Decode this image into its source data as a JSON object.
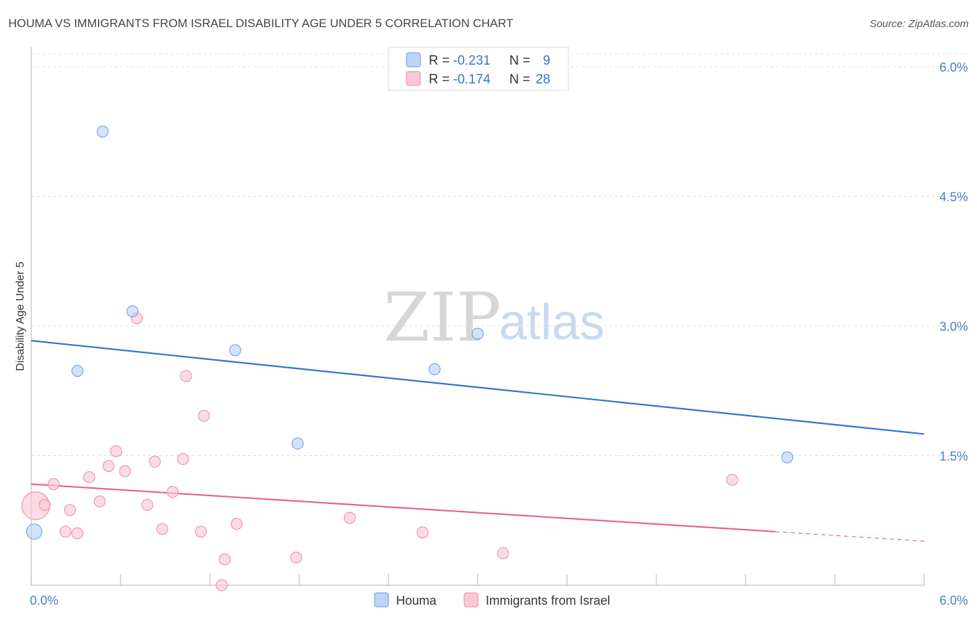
{
  "title": "HOUMA VS IMMIGRANTS FROM ISRAEL DISABILITY AGE UNDER 5 CORRELATION CHART",
  "source": "Source: ZipAtlas.com",
  "watermark": {
    "zip": "ZIP",
    "atlas": "atlas"
  },
  "colors": {
    "houma_fill": "#bcd4f6",
    "houma_stroke": "#7aa6e3",
    "houma_line": "#2f74d0",
    "israel_fill": "#f9c8d6",
    "israel_stroke": "#ee97b0",
    "israel_line": "#e6658f",
    "tick_text": "#4a7fd0",
    "grid": "#dddddd"
  },
  "legend": {
    "r_label": "R =",
    "n_label": "N =",
    "rows": [
      {
        "r": "-0.231",
        "n": "9"
      },
      {
        "r": "-0.174",
        "n": "28"
      }
    ]
  },
  "chart_data": {
    "type": "scatter",
    "title": "HOUMA VS IMMIGRANTS FROM ISRAEL DISABILITY AGE UNDER 5 CORRELATION CHART",
    "xlabel": "",
    "ylabel": "Disability Age Under 5",
    "xlim": [
      0,
      6
    ],
    "ylim": [
      0,
      6
    ],
    "x_tick_labels": [
      "0.0%",
      "6.0%"
    ],
    "y_ticks": [
      1.5,
      3.0,
      4.5,
      6.0
    ],
    "y_tick_labels": [
      "1.5%",
      "3.0%",
      "4.5%",
      "6.0%"
    ],
    "grid": "horizontal dashed",
    "legend_position": "top-center",
    "series": [
      {
        "name": "Houma",
        "r": -0.231,
        "n": 9,
        "points": [
          {
            "x": 0.02,
            "y": 0.62,
            "size": "large"
          },
          {
            "x": 0.48,
            "y": 5.25
          },
          {
            "x": 0.31,
            "y": 2.48
          },
          {
            "x": 0.68,
            "y": 3.17
          },
          {
            "x": 1.37,
            "y": 2.72
          },
          {
            "x": 1.79,
            "y": 1.64
          },
          {
            "x": 2.71,
            "y": 2.5
          },
          {
            "x": 3.0,
            "y": 2.91
          },
          {
            "x": 5.08,
            "y": 1.48
          }
        ],
        "trend": {
          "x": [
            0,
            6
          ],
          "y": [
            2.83,
            1.75
          ]
        }
      },
      {
        "name": "Immigrants from Israel",
        "r": -0.174,
        "n": 28,
        "points": [
          {
            "x": 0.03,
            "y": 0.92,
            "size": "large"
          },
          {
            "x": 0.09,
            "y": 0.93
          },
          {
            "x": 0.15,
            "y": 1.17
          },
          {
            "x": 0.23,
            "y": 0.62
          },
          {
            "x": 0.26,
            "y": 0.87
          },
          {
            "x": 0.31,
            "y": 0.6
          },
          {
            "x": 0.39,
            "y": 1.25
          },
          {
            "x": 0.46,
            "y": 0.97
          },
          {
            "x": 0.52,
            "y": 1.38
          },
          {
            "x": 0.57,
            "y": 1.55
          },
          {
            "x": 0.63,
            "y": 1.32
          },
          {
            "x": 0.71,
            "y": 3.09
          },
          {
            "x": 0.78,
            "y": 0.93
          },
          {
            "x": 0.83,
            "y": 1.43
          },
          {
            "x": 0.88,
            "y": 0.65
          },
          {
            "x": 0.95,
            "y": 1.08
          },
          {
            "x": 1.02,
            "y": 1.46
          },
          {
            "x": 1.04,
            "y": 2.42
          },
          {
            "x": 1.14,
            "y": 0.62
          },
          {
            "x": 1.16,
            "y": 1.96
          },
          {
            "x": 1.28,
            "y": 0.0
          },
          {
            "x": 1.3,
            "y": 0.3
          },
          {
            "x": 1.38,
            "y": 0.71
          },
          {
            "x": 1.78,
            "y": 0.32
          },
          {
            "x": 2.14,
            "y": 0.78
          },
          {
            "x": 2.63,
            "y": 0.61
          },
          {
            "x": 3.17,
            "y": 0.37
          },
          {
            "x": 4.71,
            "y": 1.22
          }
        ],
        "trend": {
          "x": [
            0,
            6
          ],
          "y": [
            1.17,
            0.51
          ]
        },
        "trend_solid_until_x": 5.0
      }
    ]
  },
  "bottom_legend": [
    {
      "label": "Houma"
    },
    {
      "label": "Immigrants from Israel"
    }
  ]
}
